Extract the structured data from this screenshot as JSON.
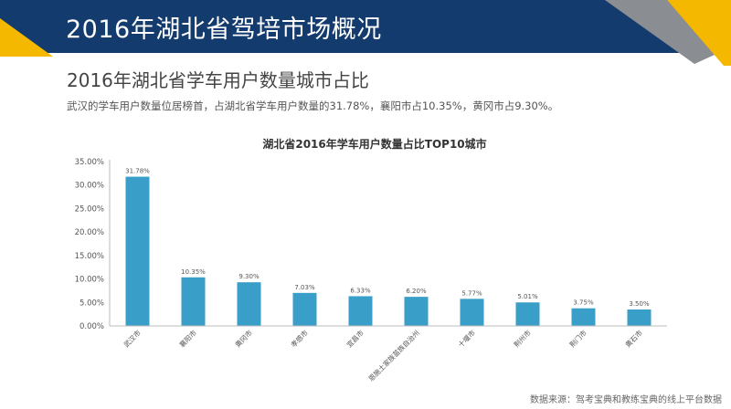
{
  "header": {
    "title": "2016年湖北省驾培市场概况"
  },
  "section": {
    "subtitle": "2016年湖北省学车用户数量城市占比",
    "description": "武汉的学车用户数量位居榜首，占湖北省学车用户数量的31.78%，襄阳市占10.35%，黄冈市占9.30%。"
  },
  "colors": {
    "header_bg": "#143b6e",
    "accent_yellow": "#f5b800",
    "accent_gray": "#8a8d91",
    "bar": "#3a9fc8"
  },
  "chart_data": {
    "type": "bar",
    "title": "湖北省2016年学车用户数量占比TOP10城市",
    "categories": [
      "武汉市",
      "襄阳市",
      "黄冈市",
      "孝感市",
      "宜昌市",
      "恩施土家族苗族自治州",
      "十堰市",
      "荆州市",
      "荆门市",
      "黄石市"
    ],
    "values": [
      31.78,
      10.35,
      9.3,
      7.03,
      6.33,
      6.2,
      5.77,
      5.01,
      3.75,
      3.5
    ],
    "data_labels": [
      "31.78%",
      "10.35%",
      "9.30%",
      "7.03%",
      "6.33%",
      "6.20%",
      "5.77%",
      "5.01%",
      "3.75%",
      "3.50%"
    ],
    "yticks": [
      "0.00%",
      "5.00%",
      "10.00%",
      "15.00%",
      "20.00%",
      "25.00%",
      "30.00%",
      "35.00%"
    ],
    "ylim": [
      0,
      35
    ],
    "xlabel": "",
    "ylabel": "",
    "grid": false,
    "legend": "none"
  },
  "footer": {
    "source": "数据来源：驾考宝典和教练宝典的线上平台数据"
  }
}
